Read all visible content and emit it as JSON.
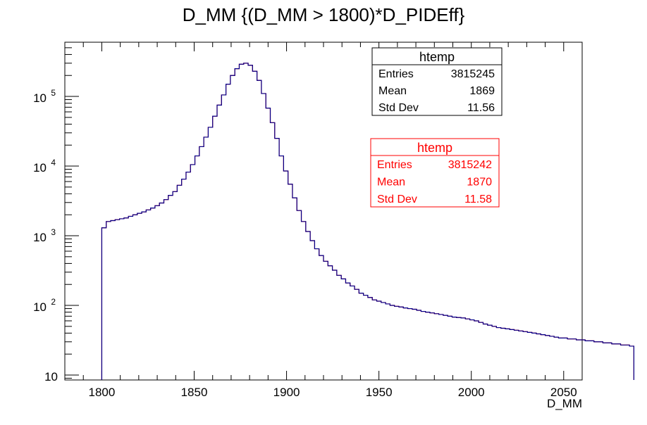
{
  "chart_data": {
    "type": "histogram-step",
    "title": "D_MM {(D_MM > 1800)*D_PIDEff}",
    "xlabel": "D_MM",
    "ylabel": "",
    "xlim": [
      1780,
      2060
    ],
    "ylim": [
      8.5,
      600000
    ],
    "yscale": "log",
    "grid": false,
    "x_ticks": [
      1800,
      1850,
      1900,
      1950,
      2000,
      2050
    ],
    "y_ticks": [
      {
        "value": 10,
        "base": "10",
        "exp": ""
      },
      {
        "value": 100,
        "base": "10",
        "exp": "2"
      },
      {
        "value": 1000,
        "base": "10",
        "exp": "3"
      },
      {
        "value": 10000,
        "base": "10",
        "exp": "4"
      },
      {
        "value": 100000,
        "base": "10",
        "exp": "5"
      }
    ],
    "bin_edges_start": 1800,
    "bin_width": 2.4,
    "series": [
      {
        "color": "#00008b",
        "values": [
          1300,
          1600,
          1650,
          1700,
          1750,
          1800,
          1900,
          2000,
          2100,
          2200,
          2350,
          2500,
          2700,
          2950,
          3300,
          3800,
          4300,
          5300,
          6500,
          8200,
          10500,
          14000,
          19000,
          26000,
          36000,
          52000,
          75000,
          105000,
          150000,
          200000,
          250000,
          290000,
          300000,
          280000,
          230000,
          170000,
          110000,
          68000,
          42000,
          25000,
          14000,
          8500,
          5500,
          3500,
          2300,
          1600,
          1150,
          850,
          650,
          520,
          430,
          370,
          320,
          270,
          240,
          210,
          190,
          170,
          150,
          140,
          130,
          120,
          115,
          110,
          105,
          100,
          97,
          95,
          92,
          90,
          88,
          85,
          82,
          80,
          78,
          76,
          74,
          72,
          70,
          68,
          67,
          66,
          64,
          62,
          60,
          57,
          54,
          52,
          50,
          48,
          47,
          46,
          45,
          44,
          43,
          42,
          41,
          40,
          39,
          38,
          37,
          36,
          35,
          34,
          34,
          33,
          33,
          32,
          32,
          31,
          31,
          30,
          30,
          29,
          29,
          28,
          28,
          27,
          27,
          26
        ]
      },
      {
        "color": "#ff0000",
        "values": [
          1300,
          1600,
          1650,
          1700,
          1750,
          1800,
          1900,
          2000,
          2100,
          2200,
          2350,
          2500,
          2700,
          2950,
          3300,
          3800,
          4300,
          5300,
          6500,
          8200,
          10500,
          14000,
          19000,
          26000,
          36000,
          52000,
          75000,
          105000,
          150000,
          200000,
          250000,
          290000,
          300000,
          280000,
          230000,
          170000,
          110000,
          68000,
          42000,
          25000,
          14000,
          8500,
          5500,
          3500,
          2300,
          1600,
          1150,
          850,
          650,
          520,
          430,
          370,
          320,
          270,
          240,
          210,
          190,
          170,
          150,
          140,
          130,
          120,
          115,
          110,
          105,
          100,
          97,
          95,
          92,
          90,
          88,
          85,
          82,
          80,
          78,
          76,
          74,
          72,
          70,
          68,
          67,
          66,
          64,
          62,
          60,
          57,
          54,
          52,
          50,
          48,
          47,
          46,
          45,
          44,
          43,
          42,
          41,
          40,
          39,
          38,
          37,
          36,
          35,
          34,
          34,
          33,
          33,
          32,
          32,
          31,
          31,
          30,
          30,
          29,
          29,
          28,
          28,
          27,
          27,
          26
        ]
      }
    ]
  },
  "stats_boxes": [
    {
      "title": "htemp",
      "color": "#000000",
      "rows": [
        {
          "label": "Entries",
          "value": "3815245"
        },
        {
          "label": "Mean",
          "value": "1869"
        },
        {
          "label": "Std Dev",
          "value": "11.56"
        }
      ]
    },
    {
      "title": "htemp",
      "color": "#ff0000",
      "rows": [
        {
          "label": "Entries",
          "value": "3815242"
        },
        {
          "label": "Mean",
          "value": "1870"
        },
        {
          "label": "Std Dev",
          "value": "11.58"
        }
      ]
    }
  ]
}
